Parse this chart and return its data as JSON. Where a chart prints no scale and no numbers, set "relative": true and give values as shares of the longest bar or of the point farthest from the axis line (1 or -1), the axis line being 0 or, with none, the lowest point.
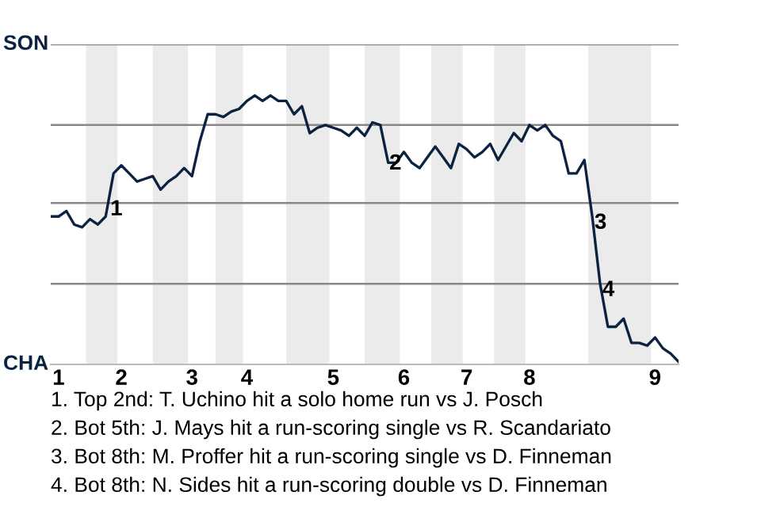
{
  "chart_data": {
    "type": "line",
    "relative": true,
    "categories": [
      null,
      "1",
      null,
      null,
      null,
      null,
      null,
      null,
      null,
      "2",
      null,
      null,
      null,
      null,
      null,
      null,
      null,
      null,
      "3",
      null,
      null,
      null,
      null,
      null,
      null,
      "4",
      null,
      null,
      null,
      null,
      null,
      null,
      null,
      null,
      null,
      null,
      "5",
      null,
      null,
      null,
      null,
      null,
      null,
      null,
      null,
      "6",
      null,
      null,
      null,
      null,
      null,
      null,
      null,
      "7",
      null,
      null,
      null,
      null,
      null,
      null,
      null,
      "8",
      null,
      null,
      null,
      null,
      null,
      null,
      null,
      null,
      null,
      null,
      null,
      null,
      null,
      null,
      null,
      "9",
      null,
      null,
      null
    ],
    "series": [
      {
        "color": "#0b2341",
        "values": [
          0.55,
          0.55,
          0.57,
          0.52,
          0.51,
          0.54,
          0.52,
          0.55,
          0.71,
          0.74,
          0.71,
          0.68,
          0.69,
          0.7,
          0.65,
          0.68,
          0.7,
          0.73,
          0.7,
          0.83,
          0.93,
          0.93,
          0.92,
          0.94,
          0.95,
          0.98,
          1,
          0.98,
          1,
          0.98,
          0.98,
          0.93,
          0.96,
          0.86,
          0.88,
          0.89,
          0.88,
          0.87,
          0.85,
          0.88,
          0.85,
          0.9,
          0.89,
          0.75,
          0.75,
          0.79,
          0.75,
          0.73,
          0.77,
          0.81,
          0.77,
          0.73,
          0.82,
          0.8,
          0.77,
          0.79,
          0.82,
          0.76,
          0.81,
          0.86,
          0.83,
          0.89,
          0.87,
          0.89,
          0.85,
          0.83,
          0.71,
          0.71,
          0.76,
          0.55,
          0.3,
          0.14,
          0.14,
          0.17,
          0.08,
          0.08,
          0.07,
          0.1,
          0.06,
          0.04,
          0.01
        ]
      }
    ],
    "ref_lines": [
      {
        "axis": "y",
        "value": 0.3,
        "color": "#888888"
      },
      {
        "axis": "y",
        "value": 0.6,
        "color": "#888888"
      },
      {
        "axis": "y",
        "value": 0.89,
        "color": "#888888"
      },
      {
        "axis": "y",
        "value": 1.19,
        "color": "#888888"
      }
    ],
    "annotations": [
      "SON",
      "CHA",
      {
        "text": "1",
        "y": 0.6
      },
      {
        "text": "2",
        "y": 0.77
      },
      {
        "text": "3",
        "y": 0.55
      },
      {
        "text": "4",
        "y": 0.3
      },
      "1. Top 2nd: T. Uchino hit a solo home run vs J. Posch",
      "2. Bot 5th: J. Mays hit a run-scoring single vs R. Scandariato",
      "3. Bot 8th: M. Proffer hit a run-scoring single vs D. Finneman",
      "4. Bot 8th: N. Sides hit a run-scoring double vs D. Finneman"
    ],
    "marker": "none",
    "line_style": "solid",
    "legend": false
  }
}
